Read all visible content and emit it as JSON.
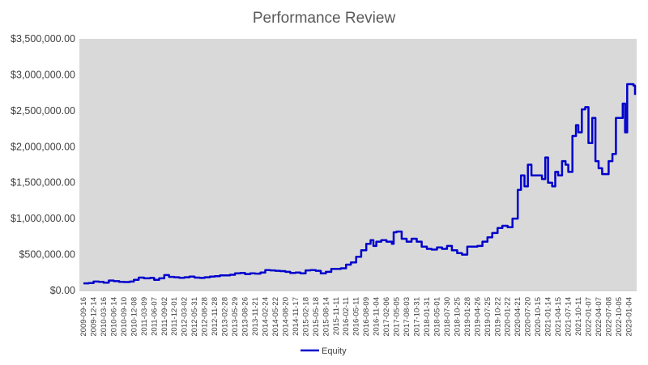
{
  "chart_data": {
    "type": "line",
    "title": "Performance Review",
    "xlabel": "",
    "ylabel": "",
    "ylim": [
      0,
      3500000
    ],
    "grid": false,
    "legend": "bottom",
    "plot_background": "#d9d9d9",
    "line_color": "#0000cc",
    "y_ticks": [
      0,
      500000,
      1000000,
      1500000,
      2000000,
      2500000,
      3000000,
      3500000
    ],
    "y_tick_labels": [
      "$0.00",
      "$500,000.00",
      "$1,000,000.00",
      "$1,500,000.00",
      "$2,000,000.00",
      "$2,500,000.00",
      "$3,000,000.00",
      "$3,500,000.00"
    ],
    "x_tick_labels": [
      "2009-09-16",
      "2009-12-14",
      "2010-03-16",
      "2010-06-14",
      "2010-09-10",
      "2010-12-08",
      "2011-03-09",
      "2011-06-07",
      "2011-09-02",
      "2011-12-01",
      "2012-03-02",
      "2012-05-31",
      "2012-08-28",
      "2012-11-28",
      "2013-02-28",
      "2013-05-29",
      "2013-08-26",
      "2013-11-21",
      "2014-02-24",
      "2014-05-22",
      "2014-08-20",
      "2014-11-17",
      "2015-02-18",
      "2015-05-18",
      "2015-08-14",
      "2015-11-11",
      "2016-02-11",
      "2016-05-11",
      "2016-08-09",
      "2016-11-04",
      "2017-02-06",
      "2017-05-05",
      "2017-08-03",
      "2017-10-31",
      "2018-01-31",
      "2018-05-01",
      "2018-07-30",
      "2018-10-25",
      "2019-01-28",
      "2019-04-26",
      "2019-07-25",
      "2019-10-22",
      "2020-01-22",
      "2020-04-21",
      "2020-07-20",
      "2020-10-15",
      "2021-01-14",
      "2021-04-15",
      "2021-07-14",
      "2021-10-11",
      "2022-01-07",
      "2022-04-07",
      "2022-07-08",
      "2022-10-05",
      "2023-01-04"
    ],
    "series": [
      {
        "name": "Equity",
        "points": [
          [
            "2009-09-16",
            100000
          ],
          [
            "2009-11-01",
            105000
          ],
          [
            "2009-12-14",
            125000
          ],
          [
            "2010-02-01",
            120000
          ],
          [
            "2010-03-16",
            110000
          ],
          [
            "2010-05-01",
            140000
          ],
          [
            "2010-06-14",
            130000
          ],
          [
            "2010-08-01",
            120000
          ],
          [
            "2010-09-10",
            118000
          ],
          [
            "2010-11-01",
            125000
          ],
          [
            "2010-12-08",
            150000
          ],
          [
            "2011-01-20",
            180000
          ],
          [
            "2011-03-09",
            170000
          ],
          [
            "2011-05-01",
            175000
          ],
          [
            "2011-06-07",
            150000
          ],
          [
            "2011-07-20",
            170000
          ],
          [
            "2011-09-02",
            215000
          ],
          [
            "2011-10-15",
            190000
          ],
          [
            "2011-12-01",
            185000
          ],
          [
            "2012-01-15",
            178000
          ],
          [
            "2012-03-02",
            185000
          ],
          [
            "2012-04-15",
            195000
          ],
          [
            "2012-05-31",
            180000
          ],
          [
            "2012-07-15",
            175000
          ],
          [
            "2012-08-28",
            185000
          ],
          [
            "2012-10-15",
            195000
          ],
          [
            "2012-11-28",
            200000
          ],
          [
            "2013-01-15",
            210000
          ],
          [
            "2013-02-28",
            210000
          ],
          [
            "2013-04-15",
            220000
          ],
          [
            "2013-05-29",
            240000
          ],
          [
            "2013-07-15",
            245000
          ],
          [
            "2013-08-26",
            230000
          ],
          [
            "2013-10-10",
            240000
          ],
          [
            "2013-11-21",
            235000
          ],
          [
            "2014-01-10",
            250000
          ],
          [
            "2014-02-24",
            285000
          ],
          [
            "2014-04-10",
            280000
          ],
          [
            "2014-05-22",
            275000
          ],
          [
            "2014-07-05",
            270000
          ],
          [
            "2014-08-20",
            260000
          ],
          [
            "2014-10-01",
            245000
          ],
          [
            "2014-11-17",
            250000
          ],
          [
            "2015-01-01",
            240000
          ],
          [
            "2015-02-18",
            280000
          ],
          [
            "2015-04-01",
            285000
          ],
          [
            "2015-05-18",
            275000
          ],
          [
            "2015-07-01",
            240000
          ],
          [
            "2015-08-14",
            260000
          ],
          [
            "2015-10-01",
            300000
          ],
          [
            "2015-11-11",
            300000
          ],
          [
            "2015-12-25",
            310000
          ],
          [
            "2016-02-11",
            360000
          ],
          [
            "2016-03-25",
            390000
          ],
          [
            "2016-05-11",
            470000
          ],
          [
            "2016-06-25",
            560000
          ],
          [
            "2016-08-09",
            650000
          ],
          [
            "2016-09-15",
            700000
          ],
          [
            "2016-10-10",
            620000
          ],
          [
            "2016-11-04",
            680000
          ],
          [
            "2016-12-20",
            700000
          ],
          [
            "2017-02-06",
            680000
          ],
          [
            "2017-03-25",
            650000
          ],
          [
            "2017-04-10",
            810000
          ],
          [
            "2017-05-05",
            820000
          ],
          [
            "2017-06-20",
            720000
          ],
          [
            "2017-08-03",
            680000
          ],
          [
            "2017-09-15",
            720000
          ],
          [
            "2017-10-31",
            680000
          ],
          [
            "2017-12-15",
            610000
          ],
          [
            "2018-01-31",
            580000
          ],
          [
            "2018-03-15",
            570000
          ],
          [
            "2018-05-01",
            600000
          ],
          [
            "2018-06-15",
            580000
          ],
          [
            "2018-07-30",
            620000
          ],
          [
            "2018-09-10",
            560000
          ],
          [
            "2018-10-25",
            520000
          ],
          [
            "2018-12-10",
            500000
          ],
          [
            "2019-01-28",
            610000
          ],
          [
            "2019-03-10",
            610000
          ],
          [
            "2019-04-26",
            620000
          ],
          [
            "2019-06-10",
            680000
          ],
          [
            "2019-07-25",
            740000
          ],
          [
            "2019-09-05",
            800000
          ],
          [
            "2019-10-22",
            870000
          ],
          [
            "2019-12-05",
            900000
          ],
          [
            "2020-01-22",
            880000
          ],
          [
            "2020-03-05",
            1000000
          ],
          [
            "2020-04-21",
            1400000
          ],
          [
            "2020-05-20",
            1600000
          ],
          [
            "2020-06-20",
            1450000
          ],
          [
            "2020-07-20",
            1750000
          ],
          [
            "2020-08-20",
            1600000
          ],
          [
            "2020-10-15",
            1600000
          ],
          [
            "2020-11-20",
            1550000
          ],
          [
            "2020-12-20",
            1850000
          ],
          [
            "2021-01-14",
            1500000
          ],
          [
            "2021-02-20",
            1450000
          ],
          [
            "2021-03-20",
            1650000
          ],
          [
            "2021-04-15",
            1600000
          ],
          [
            "2021-05-20",
            1800000
          ],
          [
            "2021-06-20",
            1750000
          ],
          [
            "2021-07-14",
            1650000
          ],
          [
            "2021-08-20",
            2150000
          ],
          [
            "2021-09-20",
            2300000
          ],
          [
            "2021-10-11",
            2200000
          ],
          [
            "2021-11-10",
            2520000
          ],
          [
            "2021-12-10",
            2550000
          ],
          [
            "2022-01-07",
            2050000
          ],
          [
            "2022-02-10",
            2400000
          ],
          [
            "2022-03-10",
            1800000
          ],
          [
            "2022-04-07",
            1700000
          ],
          [
            "2022-05-10",
            1620000
          ],
          [
            "2022-06-10",
            1620000
          ],
          [
            "2022-07-08",
            1800000
          ],
          [
            "2022-08-10",
            1900000
          ],
          [
            "2022-09-10",
            2400000
          ],
          [
            "2022-10-05",
            2400000
          ],
          [
            "2022-11-10",
            2600000
          ],
          [
            "2022-12-01",
            2200000
          ],
          [
            "2022-12-20",
            2870000
          ],
          [
            "2023-01-04",
            2870000
          ],
          [
            "2023-02-15",
            2850000
          ],
          [
            "2023-03-10",
            2720000
          ]
        ]
      }
    ]
  }
}
